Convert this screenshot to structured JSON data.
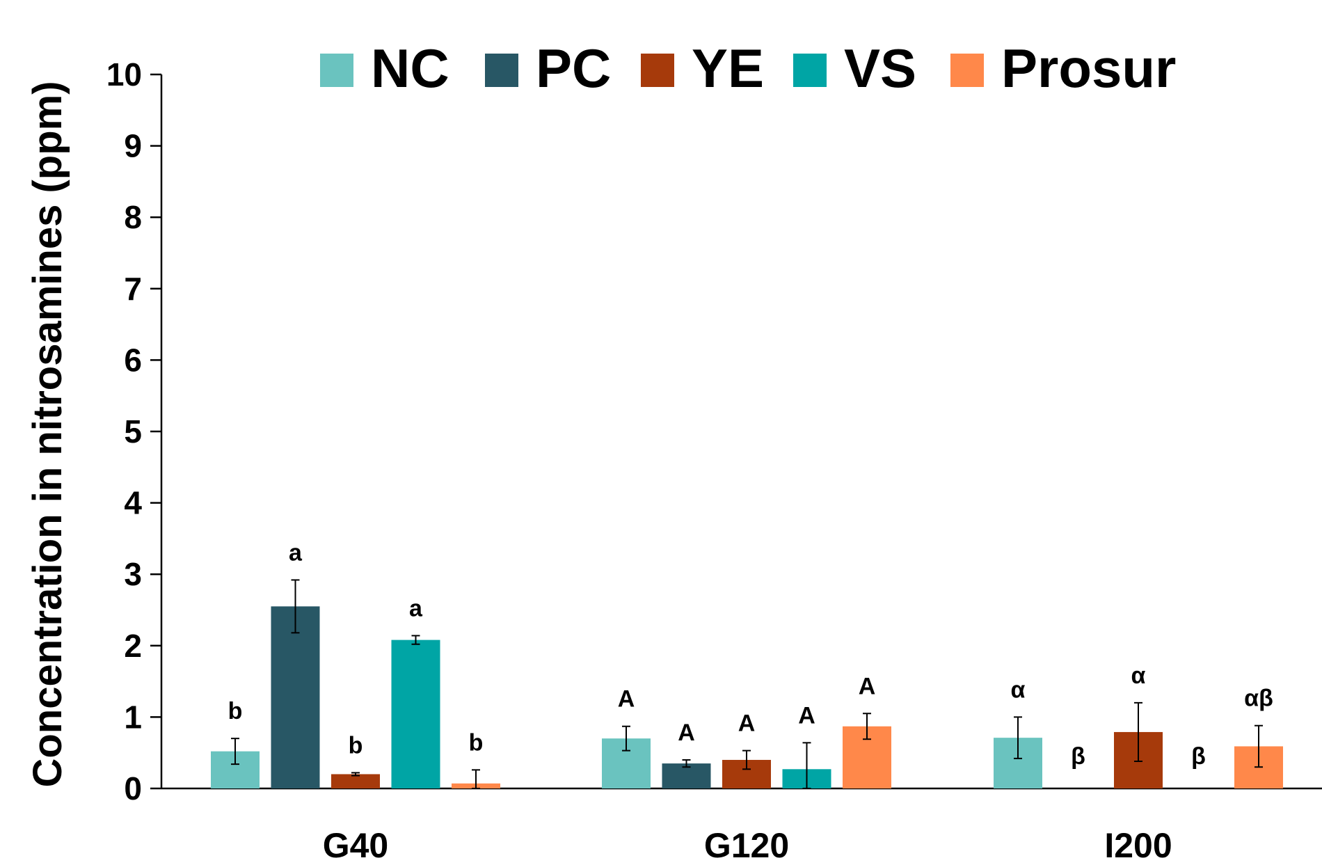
{
  "chart_data": {
    "type": "bar",
    "ylabel": "Concentration in nitrosamines (ppm)",
    "xlabel": "",
    "ylim": [
      0,
      10
    ],
    "yticks": [
      "0",
      "1",
      "2",
      "3",
      "4",
      "5",
      "6",
      "7",
      "8",
      "9",
      "10"
    ],
    "grid": false,
    "legend_position": "top",
    "categories": [
      "G40",
      "G120",
      "I200"
    ],
    "series": [
      {
        "name": "NC",
        "color": "#6ac3bf",
        "values": [
          0.52,
          0.7,
          0.71
        ],
        "errors": [
          0.18,
          0.17,
          0.29
        ],
        "labels": [
          "b",
          "A",
          "α"
        ]
      },
      {
        "name": "PC",
        "color": "#285765",
        "values": [
          2.55,
          0.35,
          null
        ],
        "errors": [
          0.37,
          0.05,
          null
        ],
        "labels": [
          "a",
          "A",
          "β"
        ]
      },
      {
        "name": "YE",
        "color": "#a63a0b",
        "values": [
          0.2,
          0.4,
          0.79
        ],
        "errors": [
          0.02,
          0.13,
          0.41
        ],
        "labels": [
          "b",
          "A",
          "α"
        ]
      },
      {
        "name": "VS",
        "color": "#00a5a5",
        "values": [
          2.08,
          0.27,
          null
        ],
        "errors": [
          0.06,
          0.37,
          null
        ],
        "labels": [
          "a",
          "A",
          "β"
        ]
      },
      {
        "name": "Prosur",
        "color": "#ff884a",
        "values": [
          0.07,
          0.87,
          0.59
        ],
        "errors": [
          0.19,
          0.18,
          0.29
        ],
        "labels": [
          "b",
          "A",
          "αβ"
        ]
      }
    ]
  }
}
